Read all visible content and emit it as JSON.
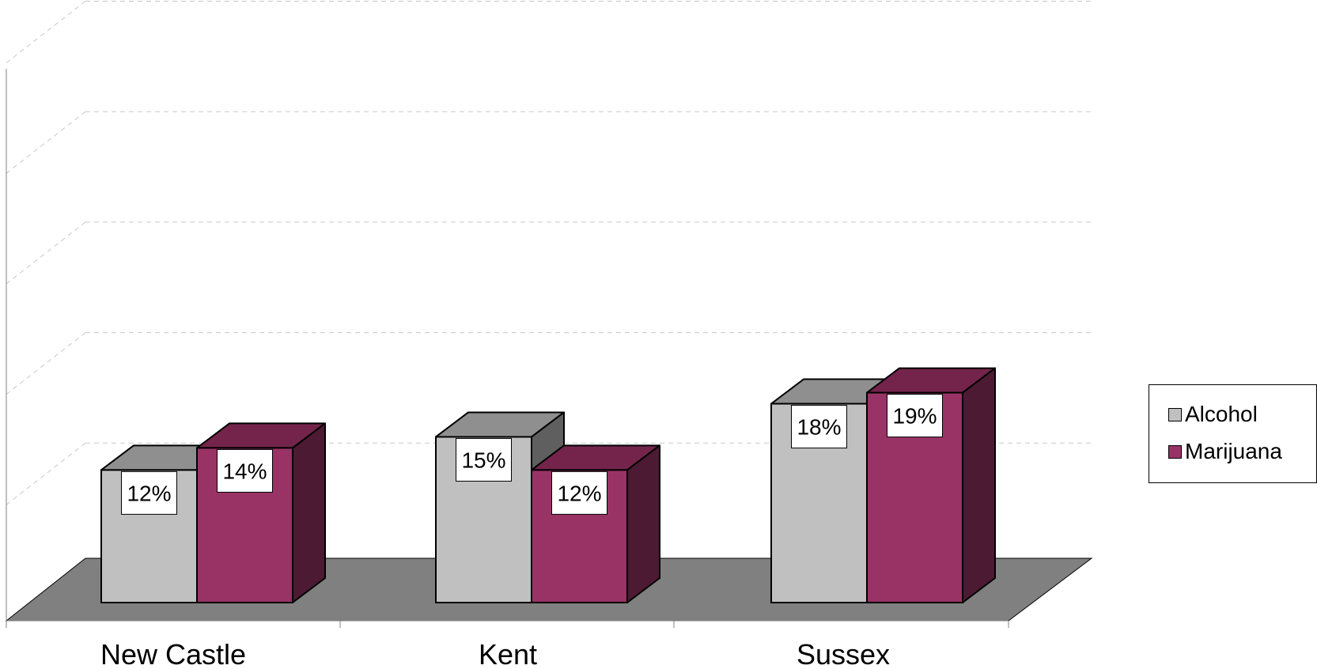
{
  "chart_data": {
    "type": "bar",
    "style": "3d-clustered-column",
    "categories": [
      "New Castle",
      "Kent",
      "Sussex"
    ],
    "series": [
      {
        "name": "Alcohol",
        "values": [
          12,
          15,
          18
        ],
        "labels": [
          "12%",
          "15%",
          "18%"
        ],
        "color": "#c0c0c0",
        "top_color": "#8f8f8f",
        "side_color": "#5f5f5f"
      },
      {
        "name": "Marijuana",
        "values": [
          14,
          12,
          19
        ],
        "labels": [
          "14%",
          "12%",
          "19%"
        ],
        "color": "#993366",
        "top_color": "#74244b",
        "side_color": "#4d1a33"
      }
    ],
    "ylim": [
      0,
      50
    ],
    "y_gridlines": [
      10,
      20,
      30,
      40,
      50
    ],
    "grid": true,
    "floor_color": "#808080",
    "legend_position": "right",
    "title": "",
    "xlabel": "",
    "ylabel": ""
  }
}
